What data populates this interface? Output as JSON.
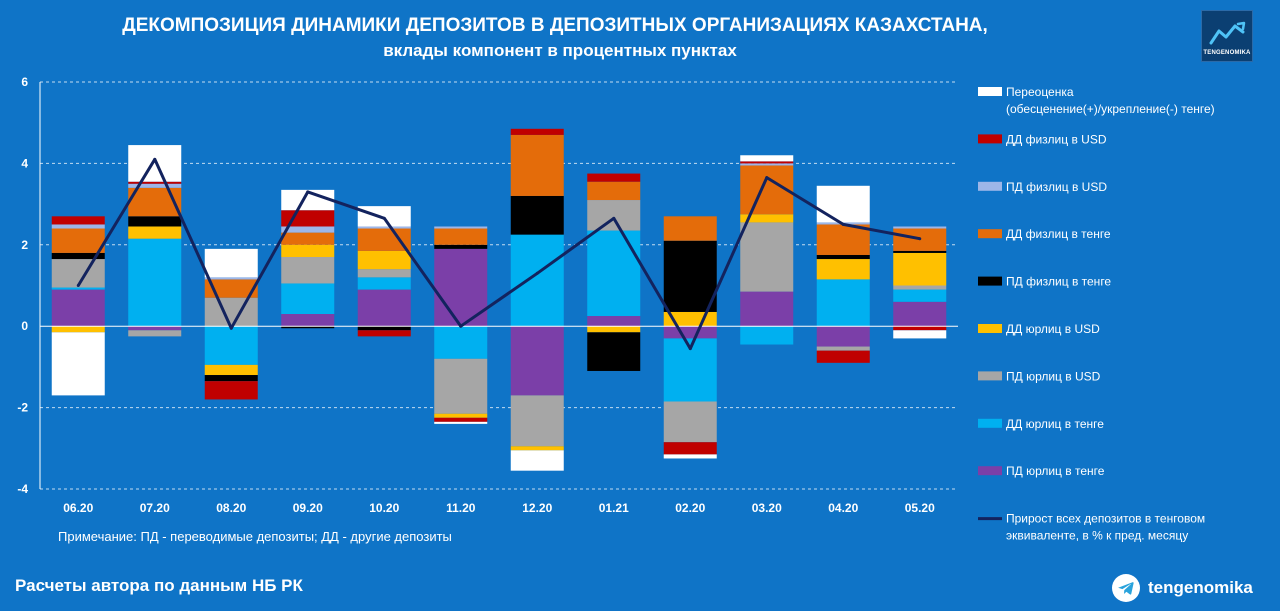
{
  "header": {
    "title": "ДЕКОМПОЗИЦИЯ ДИНАМИКИ ДЕПОЗИТОВ В ДЕПОЗИТНЫХ ОРГАНИЗАЦИЯХ КАЗАХСТАНА,",
    "subtitle": "вклады компонент в процентных пунктах",
    "logo_text": "TENGENOMIKA",
    "logo_icon": "trend-line-icon"
  },
  "footer": {
    "note": "Примечание: ПД - переводимые депозиты; ДД - другие депозиты",
    "source": "Расчеты автора по данным НБ РК",
    "brand": "tengenomika",
    "brand_icon": "telegram-icon"
  },
  "chart_data": {
    "type": "bar",
    "stacked": true,
    "categories": [
      "06.20",
      "07.20",
      "08.20",
      "09.20",
      "10.20",
      "11.20",
      "12.20",
      "01.21",
      "02.20",
      "03.20",
      "04.20",
      "05.20"
    ],
    "ylim": [
      -4,
      6
    ],
    "yticks": [
      -4,
      -2,
      0,
      2,
      4,
      6
    ],
    "ytick_labels": [
      "-4",
      "-2",
      "0",
      "2",
      "4",
      "6"
    ],
    "grid": true,
    "legend_position": "right",
    "series": [
      {
        "name": "ПД юрлиц в тенге",
        "color": "#7b3fa8",
        "values": [
          0.9,
          -0.1,
          0,
          0.3,
          0.9,
          1.9,
          -1.7,
          0.25,
          -0.3,
          0.85,
          -0.5,
          0.6
        ]
      },
      {
        "name": "ДД юрлиц в тенге",
        "color": "#00b0f0",
        "values": [
          0.05,
          2.15,
          -0.95,
          0.75,
          0.3,
          -0.8,
          2.25,
          2.1,
          -1.55,
          -0.45,
          1.15,
          0.3
        ]
      },
      {
        "name": "ПД юрлиц в USD",
        "color": "#a6a6a6",
        "values": [
          0.7,
          -0.15,
          0.7,
          0.65,
          0.2,
          -1.35,
          -1.25,
          0.75,
          -1.0,
          1.7,
          -0.1,
          0.1
        ]
      },
      {
        "name": "ДД юрлиц в USD",
        "color": "#ffc000",
        "values": [
          -0.15,
          0.3,
          -0.25,
          0.3,
          0.45,
          -0.1,
          -0.1,
          -0.15,
          0.35,
          0.2,
          0.5,
          0.8
        ]
      },
      {
        "name": "ПД физлиц в тенге",
        "color": "#000000",
        "values": [
          0.15,
          0.25,
          -0.15,
          -0.05,
          -0.1,
          0.1,
          0.95,
          -0.95,
          1.75,
          0,
          0.1,
          0.05
        ]
      },
      {
        "name": "ДД физлиц в тенге",
        "color": "#e46c0a",
        "values": [
          0.6,
          0.7,
          0.45,
          0.3,
          0.55,
          0.4,
          1.5,
          0.45,
          0.6,
          1.2,
          0.75,
          0.55
        ]
      },
      {
        "name": "ПД физлиц в USD",
        "color": "#9db6e8",
        "values": [
          0.1,
          0.1,
          0.05,
          0.15,
          0.05,
          0.05,
          0,
          0,
          0,
          0.05,
          0.05,
          0.05
        ]
      },
      {
        "name": "ДД физлиц в USD",
        "color": "#c00000",
        "values": [
          0.2,
          0.05,
          -0.45,
          0.4,
          -0.15,
          -0.1,
          0.15,
          0.2,
          -0.3,
          0.05,
          -0.3,
          -0.1
        ]
      },
      {
        "name": "Переоценка\n(обесценение(+)/укрепление(-) тенге)",
        "color": "#ffffff",
        "values": [
          -1.55,
          0.9,
          0.7,
          0.5,
          0.5,
          -0.05,
          -0.5,
          0,
          -0.1,
          0.15,
          0.9,
          -0.2
        ]
      }
    ],
    "line": {
      "name": "Прирост всех депозитов в тенговом\nэквиваленте, в % к пред. месяцу",
      "color": "#13235e",
      "values": [
        1.0,
        4.1,
        -0.05,
        3.3,
        2.65,
        0,
        1.3,
        2.65,
        -0.55,
        3.65,
        2.5,
        2.15
      ]
    },
    "legend_order": [
      "Переоценка\n(обесценение(+)/укрепление(-) тенге)",
      "ДД физлиц в USD",
      "ПД физлиц в USD",
      "ДД физлиц в тенге",
      "ПД физлиц в тенге",
      "ДД юрлиц в USD",
      "ПД юрлиц в USD",
      "ДД юрлиц в тенге",
      "ПД юрлиц в тенге",
      "Прирост всех депозитов в тенговом\nэквиваленте, в % к пред. месяцу"
    ]
  }
}
